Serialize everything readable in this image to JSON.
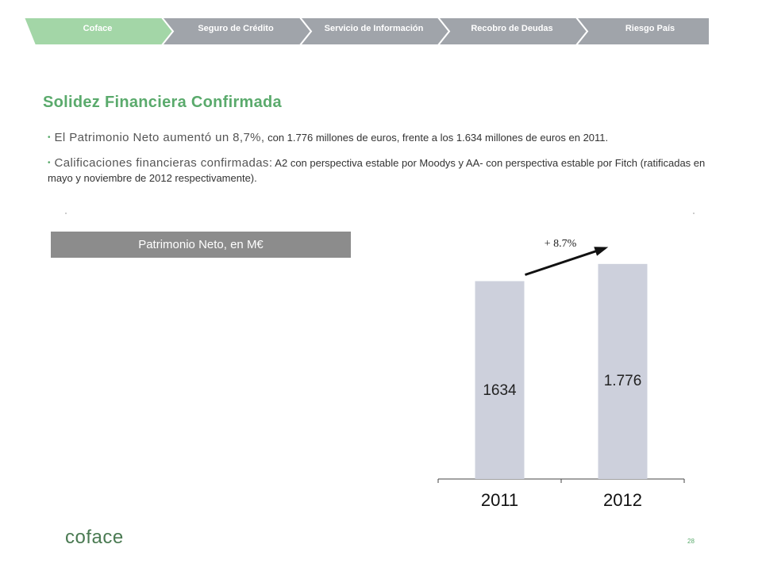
{
  "nav": {
    "steps": [
      {
        "label": "Coface",
        "color": "#a3d6a7",
        "active": true
      },
      {
        "label": "Seguro de Crédito",
        "color": "#a0a4aa"
      },
      {
        "label": "Servicio de Información",
        "color": "#a0a4aa"
      },
      {
        "label": "Recobro de Deudas",
        "color": "#a0a4aa"
      },
      {
        "label": "Riesgo País",
        "color": "#a0a4aa"
      }
    ]
  },
  "content": {
    "title": "Solidez Financiera Confirmada",
    "bullets": [
      {
        "lead": "El Patrimonio Neto aumentó un 8,7%,",
        "rest": " con 1.776 millones de euros, frente a los 1.634 millones de euros en 2011."
      },
      {
        "lead": "Calificaciones financieras confirmadas:",
        "rest": " A2 con perspectiva estable por Moodys y AA- con perspectiva estable por Fitch (ratificadas en mayo y noviembre de 2012 respectivamente)."
      }
    ],
    "chart_caption": "Patrimonio Neto, en M€"
  },
  "chart_data": {
    "type": "bar",
    "title": "Patrimonio Neto, en M€",
    "categories": [
      "2011",
      "2012"
    ],
    "values": [
      1634,
      1776
    ],
    "data_labels": [
      "1634",
      "1.776"
    ],
    "annotation": "+ 8.7%",
    "ylim": [
      0,
      1860
    ],
    "bar_color": "#cdd0dc",
    "grid": false,
    "legend": "none"
  },
  "footer": {
    "logo": "coface",
    "page_number": "28"
  }
}
